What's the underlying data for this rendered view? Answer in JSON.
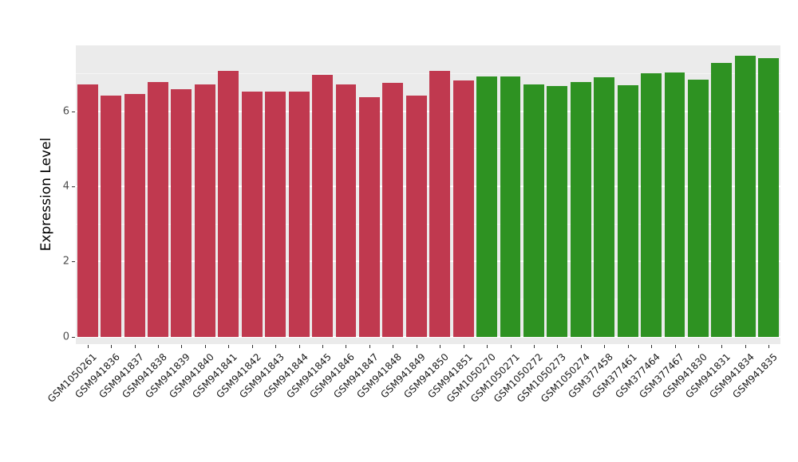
{
  "chart_data": {
    "type": "bar",
    "title": "",
    "xlabel": "",
    "ylabel": "Expression Level",
    "categories": [
      "GSM1050261",
      "GSM941836",
      "GSM941837",
      "GSM941838",
      "GSM941839",
      "GSM941840",
      "GSM941841",
      "GSM941842",
      "GSM941843",
      "GSM941844",
      "GSM941845",
      "GSM941846",
      "GSM941847",
      "GSM941848",
      "GSM941849",
      "GSM941850",
      "GSM941851",
      "GSM1050270",
      "GSM1050271",
      "GSM1050272",
      "GSM1050273",
      "GSM1050274",
      "GSM377458",
      "GSM377461",
      "GSM377464",
      "GSM377467",
      "GSM941830",
      "GSM941831",
      "GSM941834",
      "GSM941835"
    ],
    "values": [
      6.72,
      6.42,
      6.45,
      6.77,
      6.58,
      6.72,
      7.08,
      6.53,
      6.53,
      6.52,
      6.97,
      6.72,
      6.38,
      6.76,
      6.42,
      7.08,
      6.82,
      6.93,
      6.93,
      6.72,
      6.66,
      6.77,
      6.9,
      6.68,
      7.0,
      7.03,
      6.84,
      7.28,
      7.48,
      7.42
    ],
    "groups": [
      "group1",
      "group1",
      "group1",
      "group1",
      "group1",
      "group1",
      "group1",
      "group1",
      "group1",
      "group1",
      "group1",
      "group1",
      "group1",
      "group1",
      "group1",
      "group1",
      "group1",
      "group2",
      "group2",
      "group2",
      "group2",
      "group2",
      "group2",
      "group2",
      "group2",
      "group2",
      "group2",
      "group2",
      "group2",
      "group2"
    ],
    "group_colors": {
      "group1": "#C0394F",
      "group2": "#2E9222"
    },
    "yticks": [
      0,
      2,
      4,
      6
    ],
    "yticks_minor": [
      1,
      3,
      5,
      7
    ],
    "ylim": [
      -0.2,
      7.75
    ],
    "grid": true,
    "legend": "none",
    "panel_background": "#EBEBEB",
    "grid_color": "#FFFFFF",
    "tick_label_color": "#4D4D4D",
    "bar_width_fraction": 0.88
  }
}
